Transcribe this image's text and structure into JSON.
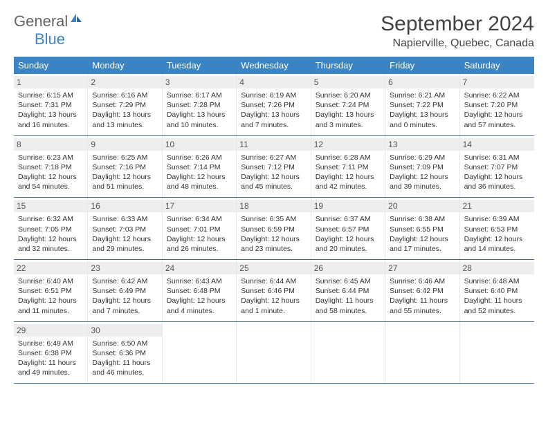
{
  "logo": {
    "text_general": "General",
    "text_blue": "Blue"
  },
  "title": "September 2024",
  "location": "Napierville, Quebec, Canada",
  "colors": {
    "header_bg": "#3a84c4",
    "header_text": "#ffffff",
    "daynum_bg": "#eeeeee",
    "week_border": "#3a6a94",
    "text": "#333333"
  },
  "days_of_week": [
    "Sunday",
    "Monday",
    "Tuesday",
    "Wednesday",
    "Thursday",
    "Friday",
    "Saturday"
  ],
  "weeks": [
    [
      {
        "n": "1",
        "sr": "Sunrise: 6:15 AM",
        "ss": "Sunset: 7:31 PM",
        "dl": "Daylight: 13 hours and 16 minutes."
      },
      {
        "n": "2",
        "sr": "Sunrise: 6:16 AM",
        "ss": "Sunset: 7:29 PM",
        "dl": "Daylight: 13 hours and 13 minutes."
      },
      {
        "n": "3",
        "sr": "Sunrise: 6:17 AM",
        "ss": "Sunset: 7:28 PM",
        "dl": "Daylight: 13 hours and 10 minutes."
      },
      {
        "n": "4",
        "sr": "Sunrise: 6:19 AM",
        "ss": "Sunset: 7:26 PM",
        "dl": "Daylight: 13 hours and 7 minutes."
      },
      {
        "n": "5",
        "sr": "Sunrise: 6:20 AM",
        "ss": "Sunset: 7:24 PM",
        "dl": "Daylight: 13 hours and 3 minutes."
      },
      {
        "n": "6",
        "sr": "Sunrise: 6:21 AM",
        "ss": "Sunset: 7:22 PM",
        "dl": "Daylight: 13 hours and 0 minutes."
      },
      {
        "n": "7",
        "sr": "Sunrise: 6:22 AM",
        "ss": "Sunset: 7:20 PM",
        "dl": "Daylight: 12 hours and 57 minutes."
      }
    ],
    [
      {
        "n": "8",
        "sr": "Sunrise: 6:23 AM",
        "ss": "Sunset: 7:18 PM",
        "dl": "Daylight: 12 hours and 54 minutes."
      },
      {
        "n": "9",
        "sr": "Sunrise: 6:25 AM",
        "ss": "Sunset: 7:16 PM",
        "dl": "Daylight: 12 hours and 51 minutes."
      },
      {
        "n": "10",
        "sr": "Sunrise: 6:26 AM",
        "ss": "Sunset: 7:14 PM",
        "dl": "Daylight: 12 hours and 48 minutes."
      },
      {
        "n": "11",
        "sr": "Sunrise: 6:27 AM",
        "ss": "Sunset: 7:12 PM",
        "dl": "Daylight: 12 hours and 45 minutes."
      },
      {
        "n": "12",
        "sr": "Sunrise: 6:28 AM",
        "ss": "Sunset: 7:11 PM",
        "dl": "Daylight: 12 hours and 42 minutes."
      },
      {
        "n": "13",
        "sr": "Sunrise: 6:29 AM",
        "ss": "Sunset: 7:09 PM",
        "dl": "Daylight: 12 hours and 39 minutes."
      },
      {
        "n": "14",
        "sr": "Sunrise: 6:31 AM",
        "ss": "Sunset: 7:07 PM",
        "dl": "Daylight: 12 hours and 36 minutes."
      }
    ],
    [
      {
        "n": "15",
        "sr": "Sunrise: 6:32 AM",
        "ss": "Sunset: 7:05 PM",
        "dl": "Daylight: 12 hours and 32 minutes."
      },
      {
        "n": "16",
        "sr": "Sunrise: 6:33 AM",
        "ss": "Sunset: 7:03 PM",
        "dl": "Daylight: 12 hours and 29 minutes."
      },
      {
        "n": "17",
        "sr": "Sunrise: 6:34 AM",
        "ss": "Sunset: 7:01 PM",
        "dl": "Daylight: 12 hours and 26 minutes."
      },
      {
        "n": "18",
        "sr": "Sunrise: 6:35 AM",
        "ss": "Sunset: 6:59 PM",
        "dl": "Daylight: 12 hours and 23 minutes."
      },
      {
        "n": "19",
        "sr": "Sunrise: 6:37 AM",
        "ss": "Sunset: 6:57 PM",
        "dl": "Daylight: 12 hours and 20 minutes."
      },
      {
        "n": "20",
        "sr": "Sunrise: 6:38 AM",
        "ss": "Sunset: 6:55 PM",
        "dl": "Daylight: 12 hours and 17 minutes."
      },
      {
        "n": "21",
        "sr": "Sunrise: 6:39 AM",
        "ss": "Sunset: 6:53 PM",
        "dl": "Daylight: 12 hours and 14 minutes."
      }
    ],
    [
      {
        "n": "22",
        "sr": "Sunrise: 6:40 AM",
        "ss": "Sunset: 6:51 PM",
        "dl": "Daylight: 12 hours and 11 minutes."
      },
      {
        "n": "23",
        "sr": "Sunrise: 6:42 AM",
        "ss": "Sunset: 6:49 PM",
        "dl": "Daylight: 12 hours and 7 minutes."
      },
      {
        "n": "24",
        "sr": "Sunrise: 6:43 AM",
        "ss": "Sunset: 6:48 PM",
        "dl": "Daylight: 12 hours and 4 minutes."
      },
      {
        "n": "25",
        "sr": "Sunrise: 6:44 AM",
        "ss": "Sunset: 6:46 PM",
        "dl": "Daylight: 12 hours and 1 minute."
      },
      {
        "n": "26",
        "sr": "Sunrise: 6:45 AM",
        "ss": "Sunset: 6:44 PM",
        "dl": "Daylight: 11 hours and 58 minutes."
      },
      {
        "n": "27",
        "sr": "Sunrise: 6:46 AM",
        "ss": "Sunset: 6:42 PM",
        "dl": "Daylight: 11 hours and 55 minutes."
      },
      {
        "n": "28",
        "sr": "Sunrise: 6:48 AM",
        "ss": "Sunset: 6:40 PM",
        "dl": "Daylight: 11 hours and 52 minutes."
      }
    ],
    [
      {
        "n": "29",
        "sr": "Sunrise: 6:49 AM",
        "ss": "Sunset: 6:38 PM",
        "dl": "Daylight: 11 hours and 49 minutes."
      },
      {
        "n": "30",
        "sr": "Sunrise: 6:50 AM",
        "ss": "Sunset: 6:36 PM",
        "dl": "Daylight: 11 hours and 46 minutes."
      },
      null,
      null,
      null,
      null,
      null
    ]
  ]
}
